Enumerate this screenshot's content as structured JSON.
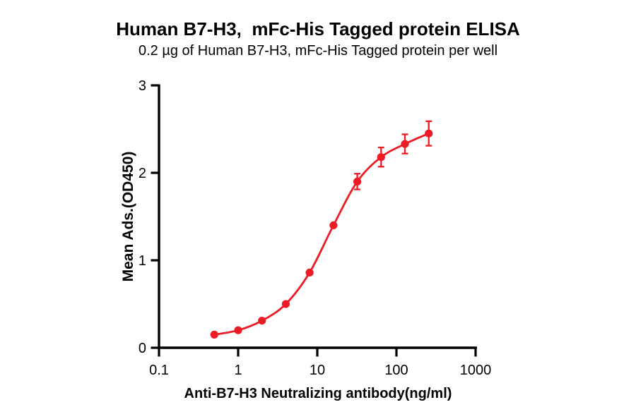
{
  "chart_data": {
    "type": "scatter",
    "title": "Human B7-H3,  mFc-His Tagged protein ELISA",
    "subtitle": "0.2 µg of Human B7-H3, mFc-His Tagged protein per well",
    "xlabel": "Anti-B7-H3 Neutralizing antibody(ng/ml)",
    "ylabel": "Mean Ads.(OD450)",
    "x_scale": "log10",
    "xlim": [
      0.1,
      1000
    ],
    "ylim": [
      0,
      3
    ],
    "x_ticks": [
      0.1,
      1,
      10,
      100,
      1000
    ],
    "x_tick_labels": [
      "0.1",
      "1",
      "10",
      "100",
      "1000"
    ],
    "y_ticks": [
      0,
      1,
      2,
      3
    ],
    "y_tick_labels": [
      "0",
      "1",
      "2",
      "3"
    ],
    "grid": false,
    "legend": "none",
    "axis_color": "#000000",
    "background_color": "#ffffff",
    "series": [
      {
        "name": "Anti-B7-H3 Neutralizing antibody",
        "color": "#ed1c24",
        "marker": "circle",
        "line": "sigmoid-fit",
        "x": [
          0.5,
          1,
          2,
          4,
          8,
          16,
          32,
          64,
          128,
          256
        ],
        "y": [
          0.15,
          0.2,
          0.31,
          0.5,
          0.86,
          1.4,
          1.9,
          2.18,
          2.33,
          2.45
        ],
        "yerr": [
          null,
          null,
          null,
          null,
          null,
          null,
          0.09,
          0.11,
          0.11,
          0.14
        ]
      }
    ]
  }
}
